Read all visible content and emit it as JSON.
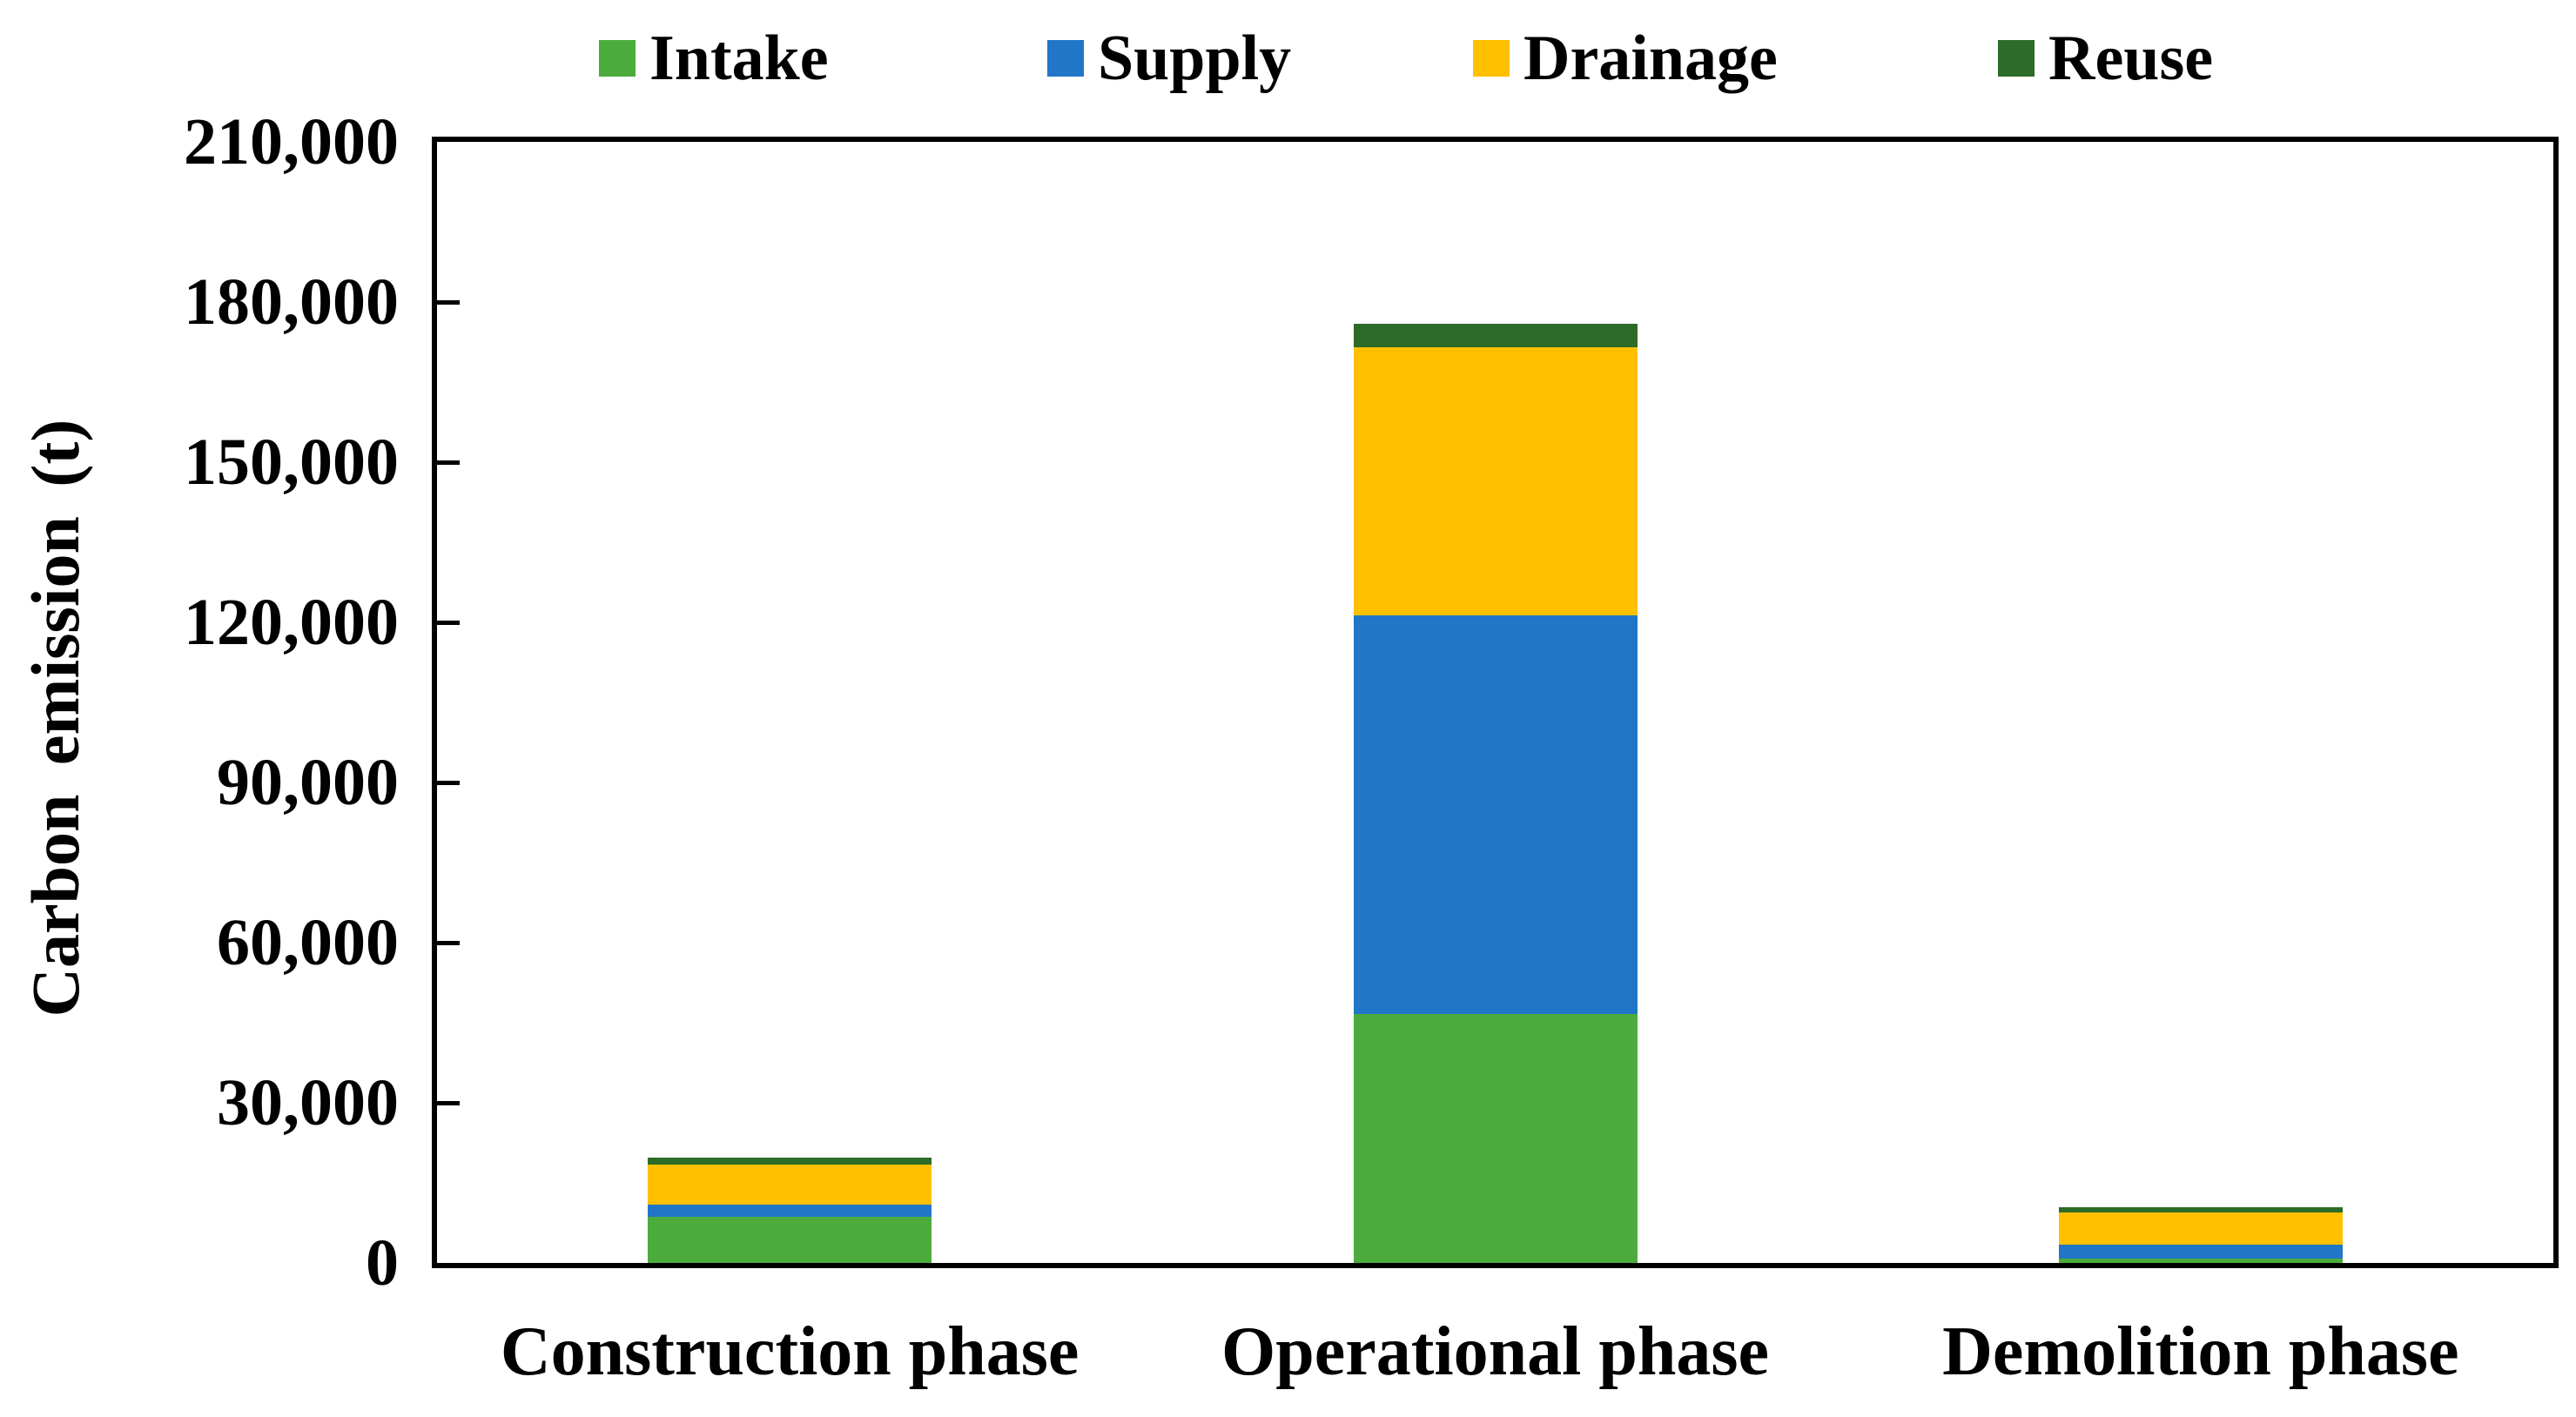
{
  "chart_data": {
    "type": "bar",
    "stacked": true,
    "title": "",
    "xlabel": "",
    "ylabel": "Carbon emission (t)",
    "ylim": [
      0,
      210000
    ],
    "ytick_step": 30000,
    "ytick_labels": [
      "0",
      "30,000",
      "60,000",
      "90,000",
      "120,000",
      "150,000",
      "180,000",
      "210,000"
    ],
    "grid": false,
    "legend_position": "top",
    "categories": [
      "Construction phase",
      "Operational phase",
      "Demolition phase"
    ],
    "series": [
      {
        "name": "Intake",
        "color": "#4BAC3C",
        "values": [
          8600,
          46600,
          800
        ]
      },
      {
        "name": "Supply",
        "color": "#2176C7",
        "values": [
          2400,
          74700,
          2700
        ]
      },
      {
        "name": "Drainage",
        "color": "#FFC000",
        "values": [
          7500,
          50200,
          6000
        ]
      },
      {
        "name": "Reuse",
        "color": "#2D6B28",
        "values": [
          1200,
          4400,
          900
        ]
      }
    ],
    "category_totals": [
      19700,
      175900,
      10400
    ],
    "axis_color": "#000000",
    "text_color": "#000000"
  }
}
